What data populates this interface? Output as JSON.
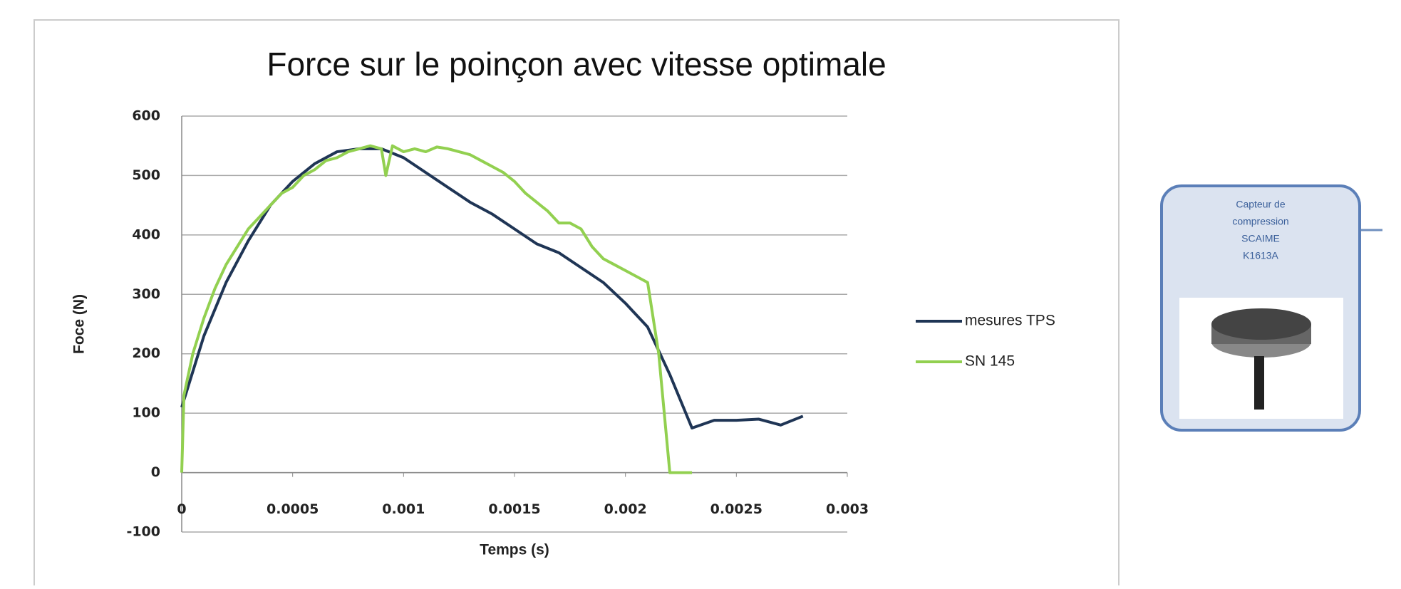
{
  "chart_data": {
    "type": "line",
    "title": "Force sur le poinçon avec vitesse optimale",
    "x_label": "Temps (s)",
    "y_label": "Foce (N)",
    "xlim": [
      0,
      0.003
    ],
    "xticks": [
      0,
      0.0005,
      0.001,
      0.0015,
      0.002,
      0.0025,
      0.003
    ],
    "ylim": [
      -100,
      600
    ],
    "yticks": [
      -100,
      0,
      100,
      200,
      300,
      400,
      500,
      600
    ],
    "grid": true,
    "legend": "right",
    "series": [
      {
        "name": "mesures TPS",
        "color": "#1f3555",
        "x": [
          0,
          0.0001,
          0.0002,
          0.0003,
          0.0004,
          0.0005,
          0.0006,
          0.0007,
          0.0008,
          0.0009,
          0.001,
          0.0011,
          0.0012,
          0.0013,
          0.0014,
          0.0015,
          0.0016,
          0.0017,
          0.0018,
          0.0019,
          0.002,
          0.0021,
          0.0022,
          0.0023,
          0.0024,
          0.0025,
          0.0026,
          0.0027,
          0.0028
        ],
        "values": [
          110,
          230,
          320,
          390,
          450,
          490,
          520,
          540,
          545,
          545,
          530,
          505,
          480,
          455,
          435,
          410,
          385,
          370,
          345,
          320,
          285,
          245,
          165,
          75,
          88,
          88,
          90,
          80,
          95
        ]
      },
      {
        "name": "SN 145",
        "color": "#92d050",
        "x": [
          0,
          1e-05,
          5e-05,
          0.0001,
          0.00015,
          0.0002,
          0.00025,
          0.0003,
          0.00035,
          0.0004,
          0.00045,
          0.0005,
          0.00055,
          0.0006,
          0.00065,
          0.0007,
          0.00075,
          0.0008,
          0.00085,
          0.0009,
          0.00092,
          0.00095,
          0.001,
          0.00105,
          0.0011,
          0.00115,
          0.0012,
          0.00125,
          0.0013,
          0.00135,
          0.0014,
          0.00145,
          0.0015,
          0.00155,
          0.0016,
          0.00165,
          0.0017,
          0.00175,
          0.0018,
          0.00185,
          0.0019,
          0.00195,
          0.002,
          0.00205,
          0.0021,
          0.00215,
          0.0022,
          0.0023
        ],
        "values": [
          0,
          130,
          200,
          260,
          310,
          350,
          380,
          410,
          430,
          450,
          470,
          480,
          500,
          510,
          525,
          530,
          540,
          545,
          550,
          545,
          500,
          550,
          540,
          545,
          540,
          548,
          545,
          540,
          535,
          525,
          515,
          505,
          490,
          470,
          455,
          440,
          420,
          420,
          410,
          380,
          360,
          350,
          340,
          330,
          320,
          200,
          0,
          0
        ]
      }
    ]
  },
  "sensor_card": {
    "lines": [
      "Capteur de",
      "compression",
      "SCAIME",
      "K1613A"
    ]
  }
}
